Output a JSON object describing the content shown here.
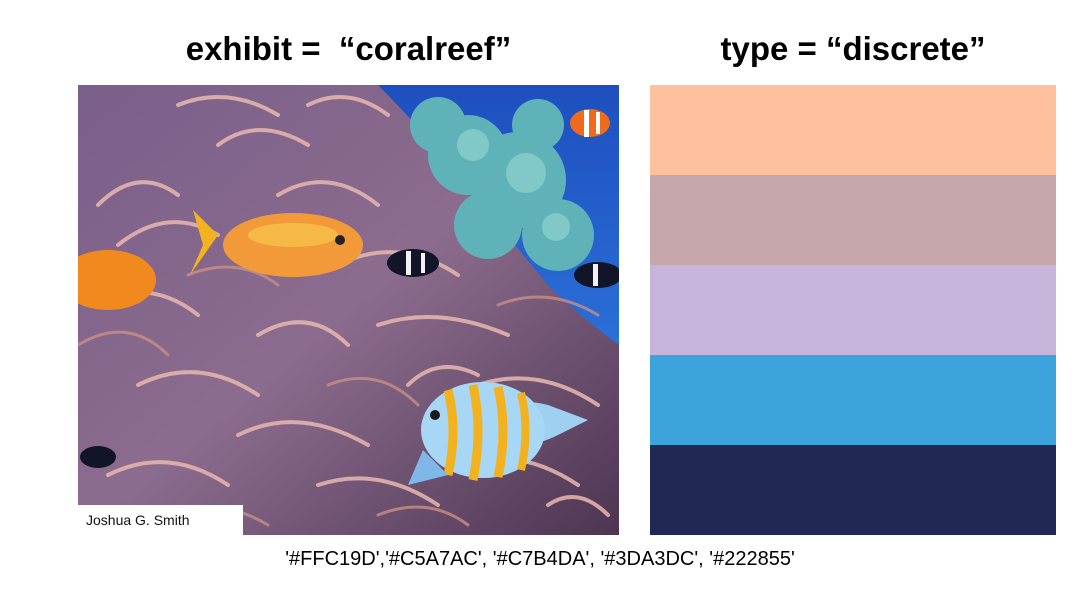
{
  "left_panel": {
    "title": "exhibit =  “coralreef”",
    "photo_credit": "Joshua G. Smith"
  },
  "right_panel": {
    "title": "type = “discrete”",
    "swatches": [
      {
        "color": "#FFC19D"
      },
      {
        "color": "#C5A7AC"
      },
      {
        "color": "#C7B4DA"
      },
      {
        "color": "#3DA3DC"
      },
      {
        "color": "#222855"
      }
    ]
  },
  "footer": {
    "hex_codes": "'#FFC19D','#C5A7AC', '#C7B4DA', '#3DA3DC', '#222855'"
  }
}
